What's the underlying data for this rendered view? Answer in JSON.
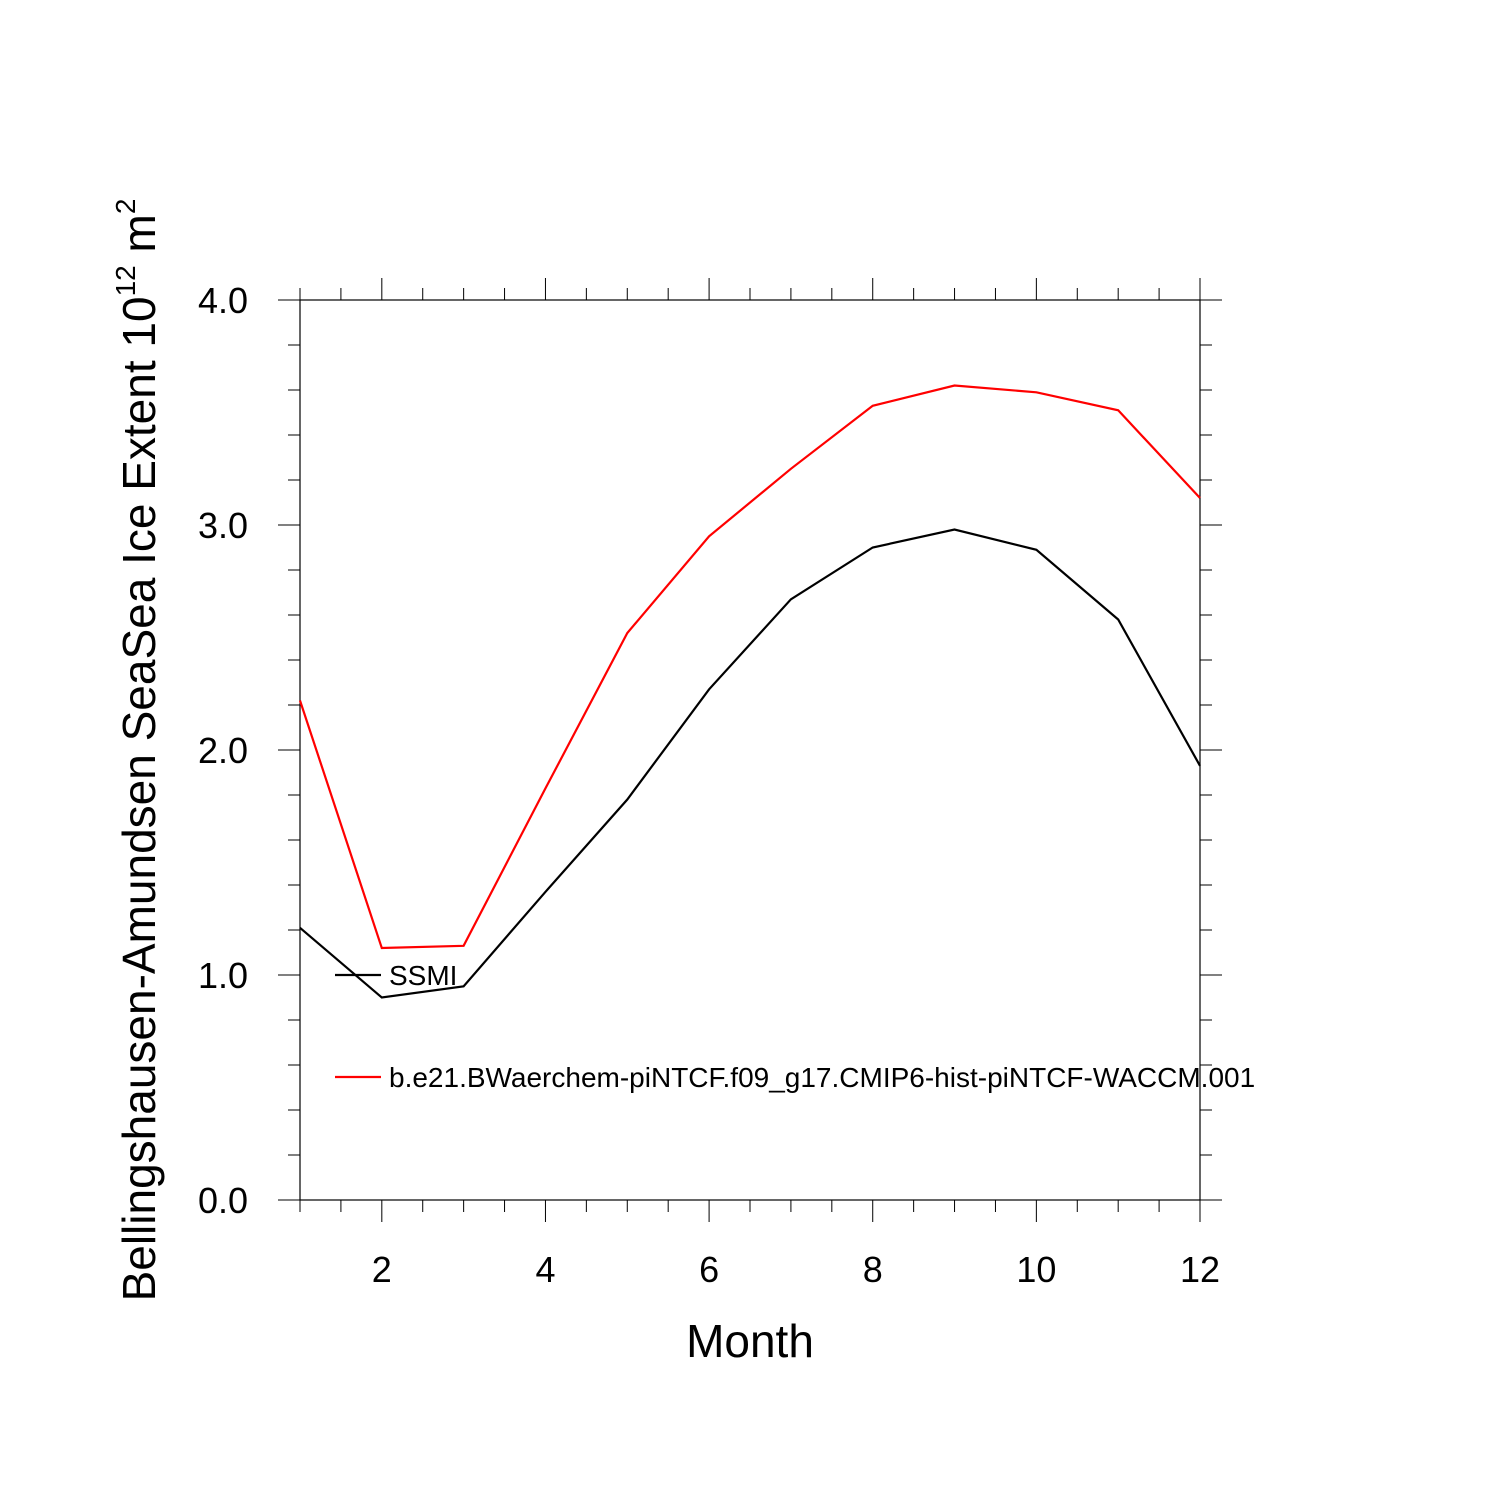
{
  "chart_data": {
    "type": "line",
    "xlabel": "Month",
    "ylabel": "Bellingshausen-Amundsen SeaSea Ice Extent 10",
    "ylabel_sup": "12",
    "ylabel_unit": " m",
    "ylabel_unit_sup": "2",
    "xlim": [
      1,
      12
    ],
    "ylim": [
      0.0,
      4.0
    ],
    "x_ticks": [
      2,
      4,
      6,
      8,
      10,
      12
    ],
    "y_ticks": [
      "0.0",
      "1.0",
      "2.0",
      "3.0",
      "4.0"
    ],
    "x": [
      1,
      2,
      3,
      4,
      5,
      6,
      7,
      8,
      9,
      10,
      11,
      12
    ],
    "series": [
      {
        "name": "SSMI",
        "color": "#000000",
        "values": [
          1.21,
          0.9,
          0.95,
          1.37,
          1.78,
          2.27,
          2.67,
          2.9,
          2.98,
          2.89,
          2.58,
          1.93
        ]
      },
      {
        "name": "b.e21.BWaerchem-piNTCF.f09_g17.CMIP6-hist-piNTCF-WACCM.001",
        "color": "#ff0000",
        "values": [
          2.22,
          1.12,
          1.13,
          1.83,
          2.52,
          2.95,
          3.25,
          3.53,
          3.62,
          3.59,
          3.51,
          3.12
        ]
      }
    ],
    "legend_position": "inside-lower-left",
    "grid": false
  }
}
